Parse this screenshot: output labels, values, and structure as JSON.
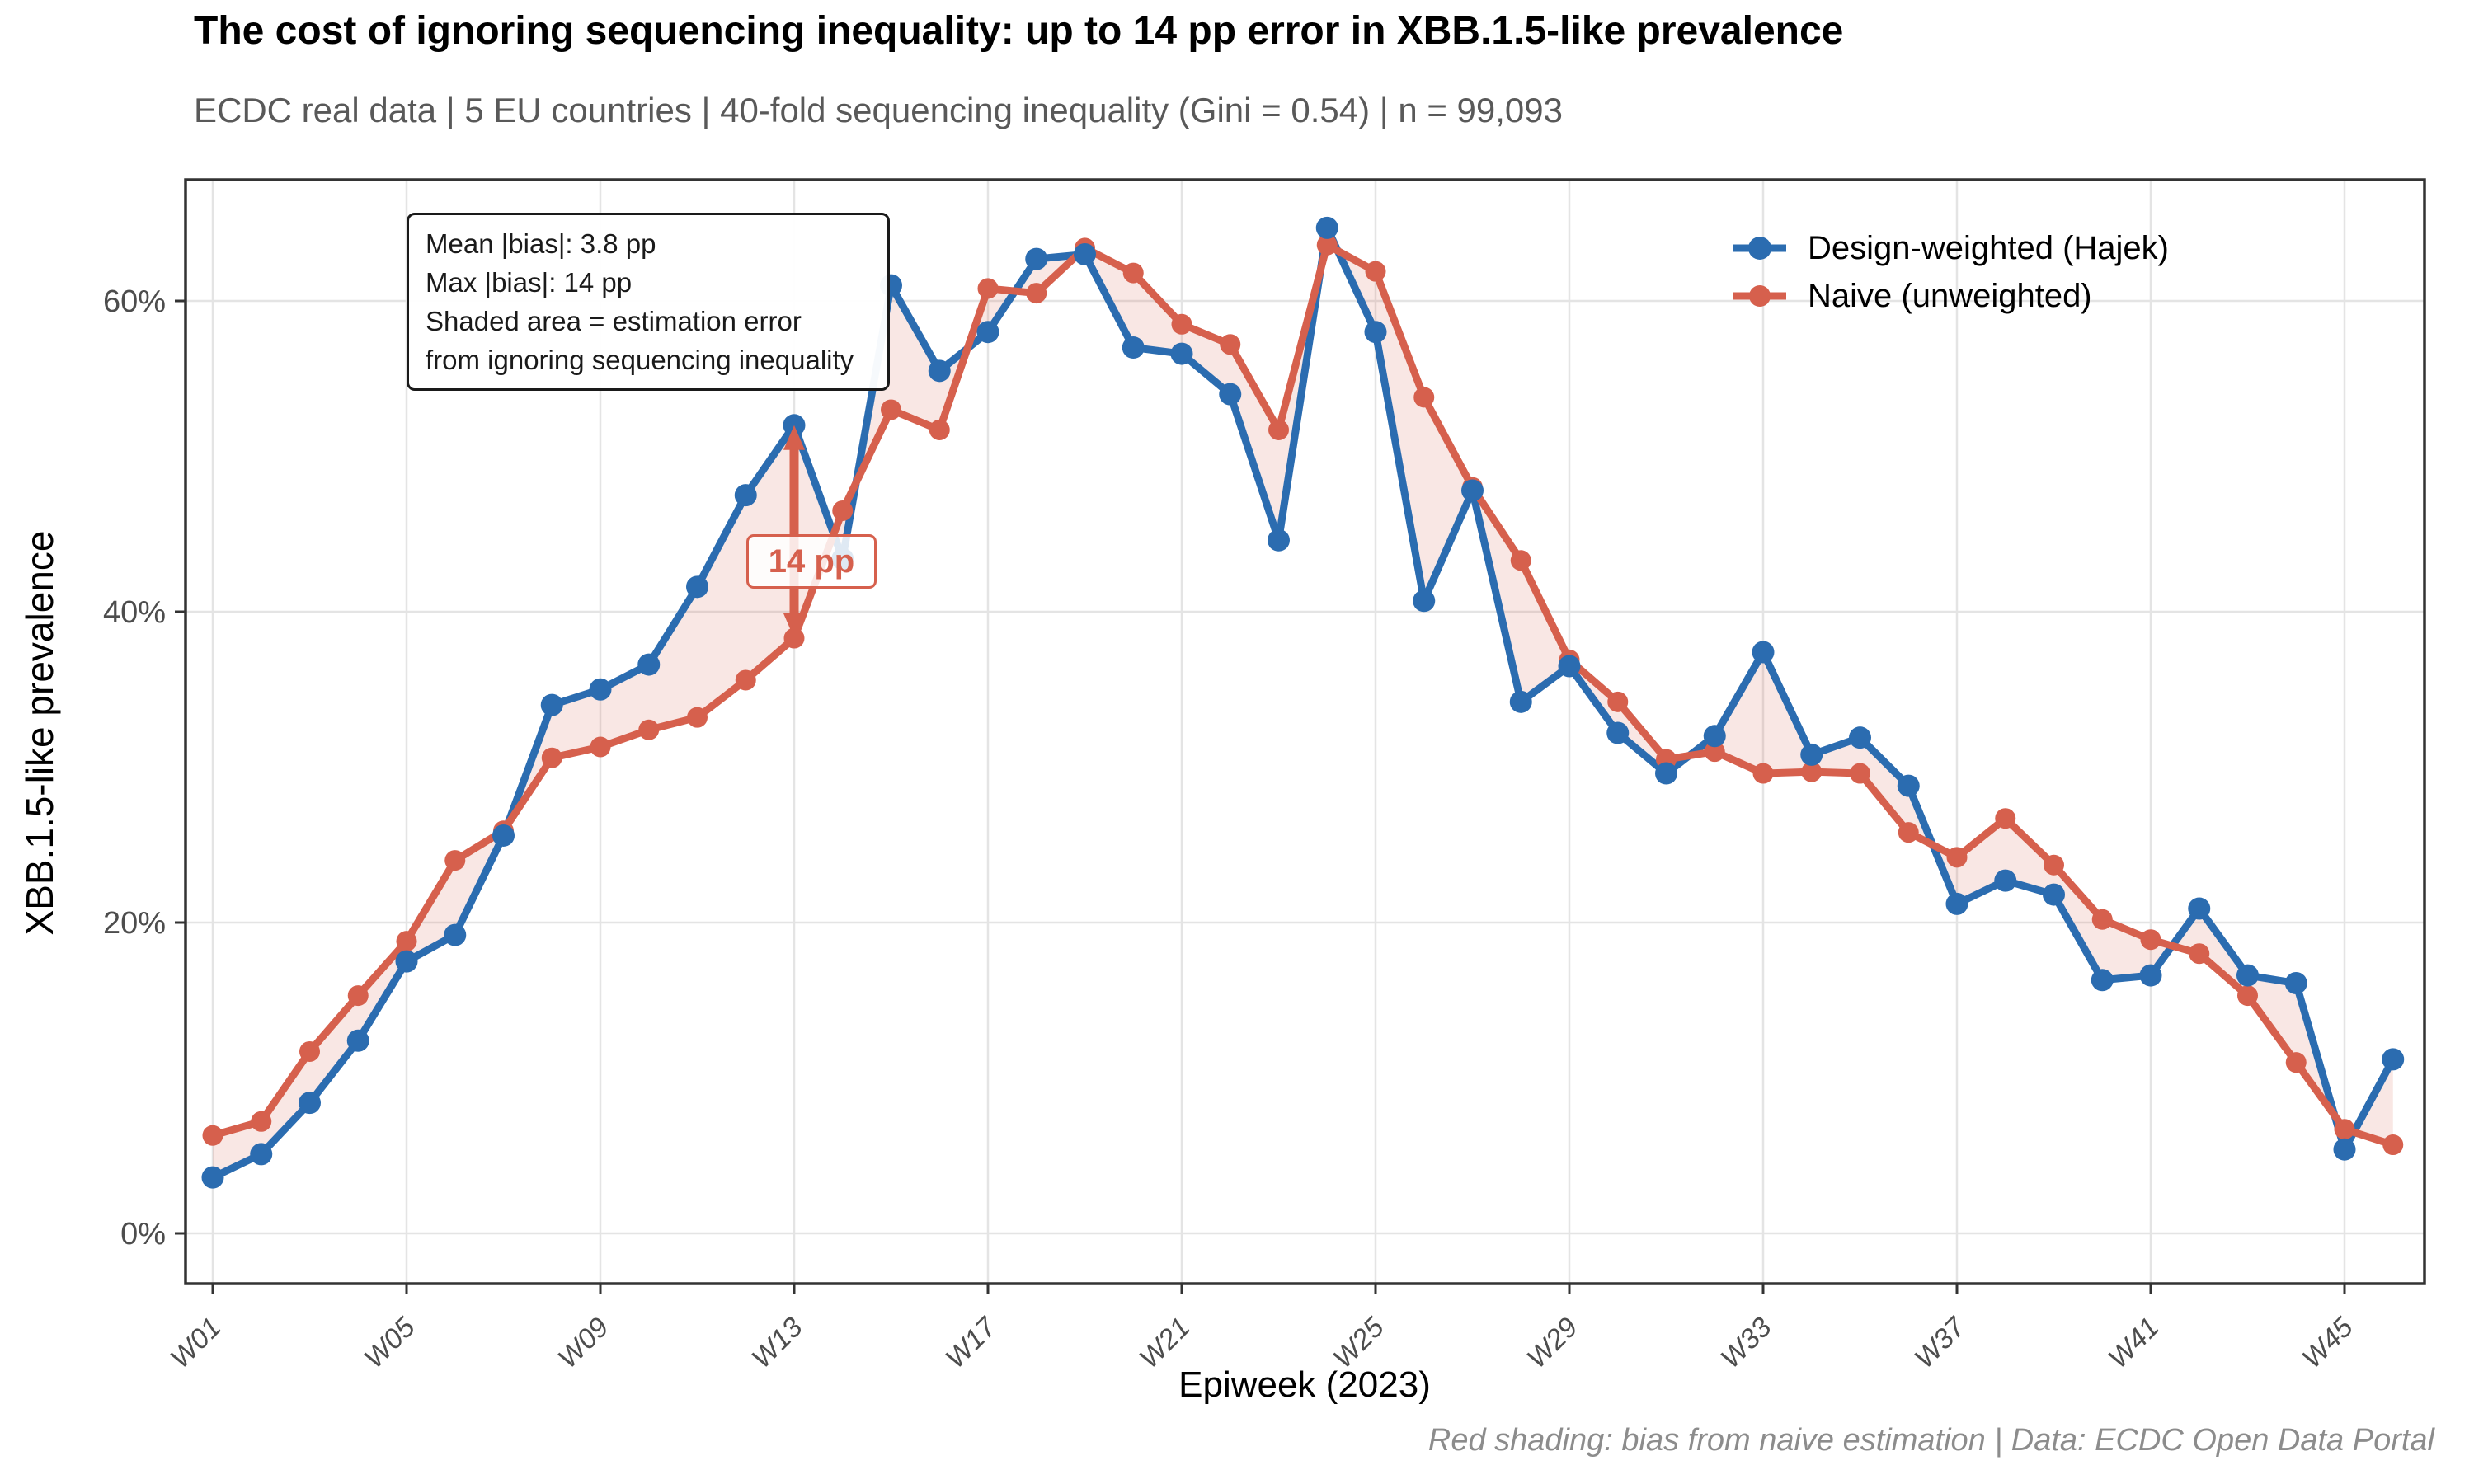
{
  "header": {
    "title": "The cost of ignoring sequencing inequality: up to 14 pp error in XBB.1.5-like prevalence",
    "subtitle": "ECDC real data | 5 EU countries | 40-fold sequencing inequality (Gini = 0.54) | n = 99,093"
  },
  "caption": "Red shading: bias from naive estimation | Data: ECDC Open Data Portal",
  "annotation_box": {
    "lines": [
      "Mean |bias|: 3.8 pp",
      "Max |bias|: 14 pp",
      "Shaded area = estimation error",
      "from ignoring sequencing inequality"
    ]
  },
  "chart_data": {
    "type": "line",
    "title": "The cost of ignoring sequencing inequality: up to 14 pp error in XBB.1.5-like prevalence",
    "xlabel": "Epiweek (2023)",
    "ylabel": "XBB.1.5-like prevalence",
    "n_weeks": 46,
    "x_first_week": "W01",
    "x_last_week": "W46",
    "x_tick_labels": [
      "W01",
      "W05",
      "W09",
      "W13",
      "W17",
      "W21",
      "W25",
      "W29",
      "W33",
      "W37",
      "W41",
      "W45"
    ],
    "x_tick_weeks": [
      1,
      5,
      9,
      13,
      17,
      21,
      25,
      29,
      33,
      37,
      41,
      45
    ],
    "y_tick_labels": [
      "0%",
      "20%",
      "40%",
      "60%"
    ],
    "y_tick_values": [
      0,
      20,
      40,
      60
    ],
    "ylim": [
      -3.5,
      67.5
    ],
    "grid": "major gridlines on, light gray",
    "legend_position": "top-right inside panel",
    "series": [
      {
        "name": "Design-weighted (Hajek)",
        "color": "#2b6cb0",
        "values": [
          3.6,
          5.1,
          8.4,
          12.4,
          17.5,
          19.2,
          25.6,
          34.0,
          35.0,
          36.6,
          41.6,
          47.5,
          52.0,
          43.4,
          61.0,
          55.5,
          58.0,
          62.7,
          63.0,
          57.0,
          56.6,
          54.0,
          44.6,
          64.7,
          58.0,
          40.7,
          47.8,
          34.2,
          36.5,
          32.2,
          29.6,
          32.0,
          37.4,
          30.8,
          31.9,
          28.8,
          21.2,
          22.7,
          21.8,
          16.3,
          16.6,
          20.9,
          16.6,
          16.1,
          5.4,
          11.2
        ]
      },
      {
        "name": "Naive (unweighted)",
        "color": "#d6604d",
        "values": [
          6.3,
          7.2,
          11.7,
          15.3,
          18.8,
          24.0,
          25.9,
          30.6,
          31.3,
          32.4,
          33.2,
          35.6,
          38.3,
          46.5,
          53.0,
          51.7,
          60.8,
          60.5,
          63.4,
          61.8,
          58.5,
          57.2,
          51.7,
          63.6,
          61.9,
          53.8,
          48.0,
          43.3,
          36.9,
          34.2,
          30.5,
          31.0,
          29.6,
          29.7,
          29.6,
          25.8,
          24.2,
          26.7,
          23.7,
          20.2,
          18.9,
          18.0,
          15.3,
          11.0,
          6.7,
          5.7
        ]
      }
    ],
    "band": {
      "meaning": "estimation error from ignoring sequencing inequality (area between the two series)",
      "color": "#d6604d",
      "opacity": 0.15
    },
    "max_bias_annotation": {
      "label": "14 pp",
      "week": 13,
      "from_value": 38.3,
      "to_value": 52.0
    }
  },
  "colors": {
    "hajek_blue": "#2b6cb0",
    "naive_red": "#d6604d",
    "band_fill": "#d6604d",
    "gridline": "#e4e4e4",
    "panel_border": "#333333",
    "tick_label": "#4d4d4d",
    "subtitle_gray": "#595959",
    "caption_gray": "#8c8c8c"
  }
}
